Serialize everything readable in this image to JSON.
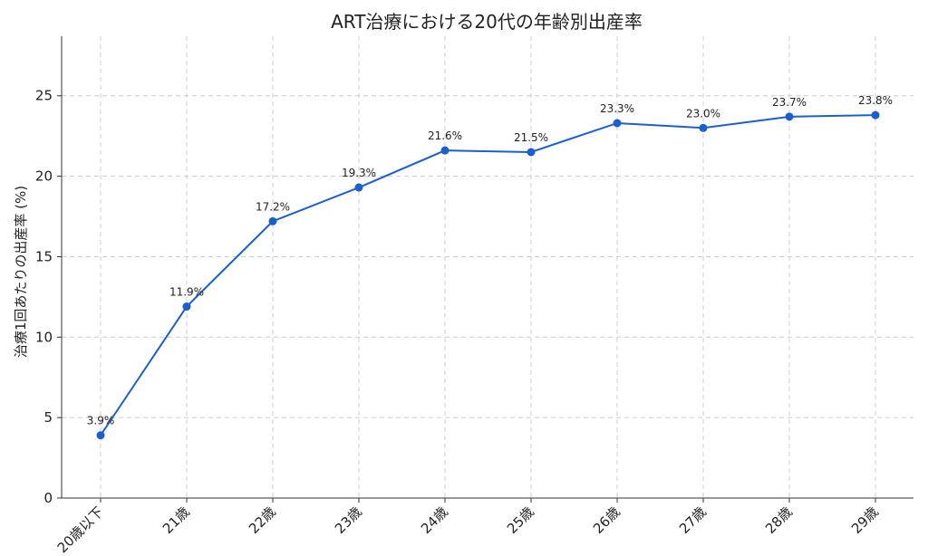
{
  "chart_data": {
    "type": "line",
    "title": "ART治療における20代の年齢別出産率",
    "xlabel": "",
    "ylabel": "治療1回あたりの出産率 (%)",
    "categories": [
      "20歳以下",
      "21歳",
      "22歳",
      "23歳",
      "24歳",
      "25歳",
      "26歳",
      "27歳",
      "28歳",
      "29歳"
    ],
    "series": [
      {
        "values": [
          3.9,
          11.9,
          17.2,
          19.3,
          21.6,
          21.5,
          23.3,
          23.0,
          23.7,
          23.8
        ]
      }
    ],
    "data_labels": [
      "3.9%",
      "11.9%",
      "17.2%",
      "19.3%",
      "21.6%",
      "21.5%",
      "23.3%",
      "23.0%",
      "23.7%",
      "23.8%"
    ],
    "ylim": [
      0,
      28.7
    ],
    "yticks": [
      0,
      5,
      10,
      15,
      20,
      25
    ],
    "grid": true,
    "color": "#1a5fcf"
  }
}
